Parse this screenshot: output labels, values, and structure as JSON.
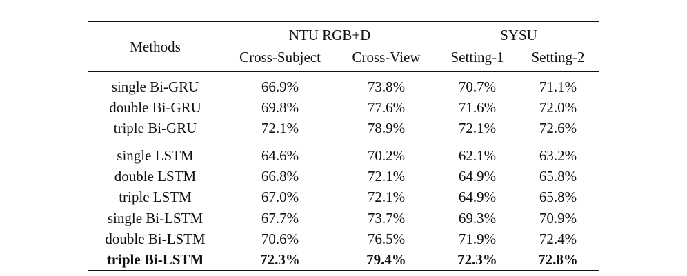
{
  "table": {
    "header": {
      "methods": "Methods",
      "ntu": "NTU RGB+D",
      "sysu": "SYSU",
      "sub": [
        "Cross-Subject",
        "Cross-View",
        "Setting-1",
        "Setting-2"
      ]
    },
    "groups": [
      [
        {
          "method": "single Bi-GRU",
          "values": [
            "66.9%",
            "73.8%",
            "70.7%",
            "71.1%"
          ]
        },
        {
          "method": "double Bi-GRU",
          "values": [
            "69.8%",
            "77.6%",
            "71.6%",
            "72.0%"
          ]
        },
        {
          "method": "triple Bi-GRU",
          "values": [
            "72.1%",
            "78.9%",
            "72.1%",
            "72.6%"
          ]
        }
      ],
      [
        {
          "method": "single LSTM",
          "values": [
            "64.6%",
            "70.2%",
            "62.1%",
            "63.2%"
          ]
        },
        {
          "method": "double LSTM",
          "values": [
            "66.8%",
            "72.1%",
            "64.9%",
            "65.8%"
          ]
        },
        {
          "method": "triple LSTM",
          "values": [
            "67.0%",
            "72.1%",
            "64.9%",
            "65.8%"
          ]
        }
      ],
      [
        {
          "method": "single Bi-LSTM",
          "values": [
            "67.7%",
            "73.7%",
            "69.3%",
            "70.9%"
          ]
        },
        {
          "method": "double Bi-LSTM",
          "values": [
            "70.6%",
            "76.5%",
            "71.9%",
            "72.4%"
          ]
        },
        {
          "method": "triple Bi-LSTM",
          "values": [
            "72.3%",
            "79.4%",
            "72.3%",
            "72.8%"
          ],
          "bold": true
        }
      ]
    ]
  }
}
